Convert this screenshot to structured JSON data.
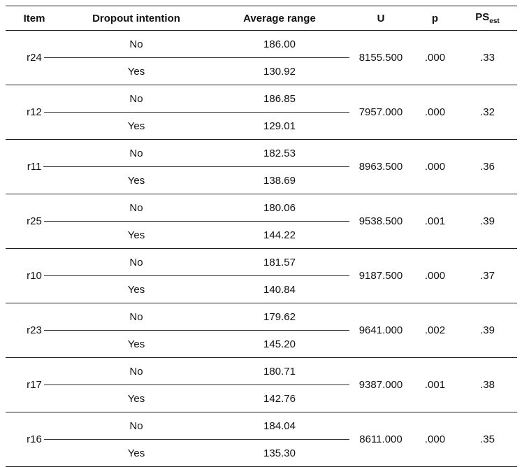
{
  "table": {
    "headers": {
      "item": "Item",
      "dropout": "Dropout intention",
      "avg": "Average range",
      "u": "U",
      "p": "p",
      "ps_base": "PS",
      "ps_sub": "est"
    },
    "group_labels": {
      "no": "No",
      "yes": "Yes"
    },
    "rows": [
      {
        "item": "r24",
        "no_avg": "186.00",
        "yes_avg": "130.92",
        "u": "8155.500",
        "p": ".000",
        "ps": ".33"
      },
      {
        "item": "r12",
        "no_avg": "186.85",
        "yes_avg": "129.01",
        "u": "7957.000",
        "p": ".000",
        "ps": ".32"
      },
      {
        "item": "r11",
        "no_avg": "182.53",
        "yes_avg": "138.69",
        "u": "8963.500",
        "p": ".000",
        "ps": ".36"
      },
      {
        "item": "r25",
        "no_avg": "180.06",
        "yes_avg": "144.22",
        "u": "9538.500",
        "p": ".001",
        "ps": ".39"
      },
      {
        "item": "r10",
        "no_avg": "181.57",
        "yes_avg": "140.84",
        "u": "9187.500",
        "p": ".000",
        "ps": ".37"
      },
      {
        "item": "r23",
        "no_avg": "179.62",
        "yes_avg": "145.20",
        "u": "9641.000",
        "p": ".002",
        "ps": ".39"
      },
      {
        "item": "r17",
        "no_avg": "180.71",
        "yes_avg": "142.76",
        "u": "9387.000",
        "p": ".001",
        "ps": ".38"
      },
      {
        "item": "r16",
        "no_avg": "184.04",
        "yes_avg": "135.30",
        "u": "8611.000",
        "p": ".000",
        "ps": ".35"
      }
    ]
  }
}
